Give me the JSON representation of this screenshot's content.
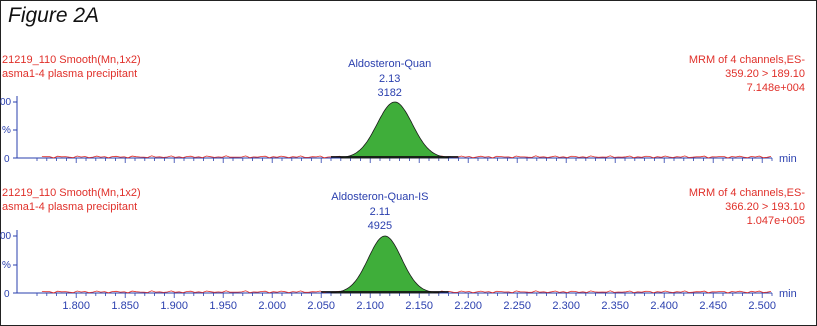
{
  "figure_title": "Figure 2A",
  "colors": {
    "peak_fill": "#3fae3a",
    "trace_line": "#e0302a",
    "label_red": "#e0302a",
    "label_blue": "#2a3fae",
    "axis": "#2a3fae"
  },
  "chart_data": [
    {
      "type": "area",
      "sample_line": "21219_110 Smooth(Mn,1x2)",
      "sample_desc": "asma1-4 plasma precipitant",
      "compound": "Aldosteron-Quan",
      "rt_label": "2.13",
      "area_label": "3182",
      "mrm_header": "MRM of 4 channels,ES-",
      "transition": "359.20 > 189.10",
      "intensity": "7.148e+004",
      "y_tick_labels": [
        "00",
        "%",
        "0"
      ],
      "xlim": [
        1.76,
        2.51
      ],
      "peak": {
        "rt": 2.125,
        "start": 2.07,
        "end": 2.18,
        "width": 0.018,
        "height_pct": 100
      },
      "baseline_pct": 2
    },
    {
      "type": "area",
      "sample_line": "21219_110 Smooth(Mn,1x2)",
      "sample_desc": "asma1-4 plasma precipitant",
      "compound": "Aldosteron-Quan-IS",
      "rt_label": "2.11",
      "area_label": "4925",
      "mrm_header": "MRM of 4 channels,ES-",
      "transition": "366.20 > 193.10",
      "intensity": "1.047e+005",
      "y_tick_labels": [
        "00",
        "%",
        "0"
      ],
      "xlim": [
        1.76,
        2.51
      ],
      "peak": {
        "rt": 2.115,
        "start": 2.06,
        "end": 2.17,
        "width": 0.017,
        "height_pct": 100
      },
      "baseline_pct": 2
    }
  ],
  "x_axis": {
    "unit": "min",
    "ticks": [
      "1.800",
      "1.850",
      "1.900",
      "1.950",
      "2.000",
      "2.050",
      "2.100",
      "2.150",
      "2.200",
      "2.250",
      "2.300",
      "2.350",
      "2.400",
      "2.450",
      "2.500"
    ]
  }
}
